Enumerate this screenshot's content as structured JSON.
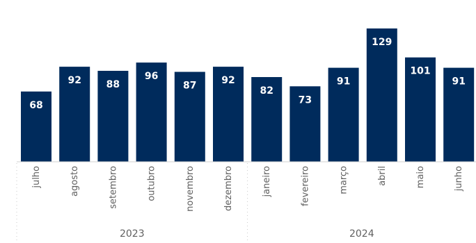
{
  "chart_data": {
    "type": "bar",
    "categories": [
      "julho",
      "agosto",
      "setembro",
      "outubro",
      "novembro",
      "dezembro",
      "janeiro",
      "fevereiro",
      "março",
      "abril",
      "maio",
      "junho"
    ],
    "values": [
      68,
      92,
      88,
      96,
      87,
      92,
      82,
      73,
      91,
      129,
      101,
      91
    ],
    "groups": [
      {
        "label": "2023",
        "count": 6
      },
      {
        "label": "2024",
        "count": 6
      }
    ],
    "title": "",
    "xlabel": "",
    "ylabel": "",
    "ylim": [
      0,
      129
    ],
    "grid": false,
    "data_labels": true,
    "colors": {
      "bar": "#002b5c",
      "label": "#ffffff",
      "text": "#606060"
    }
  }
}
